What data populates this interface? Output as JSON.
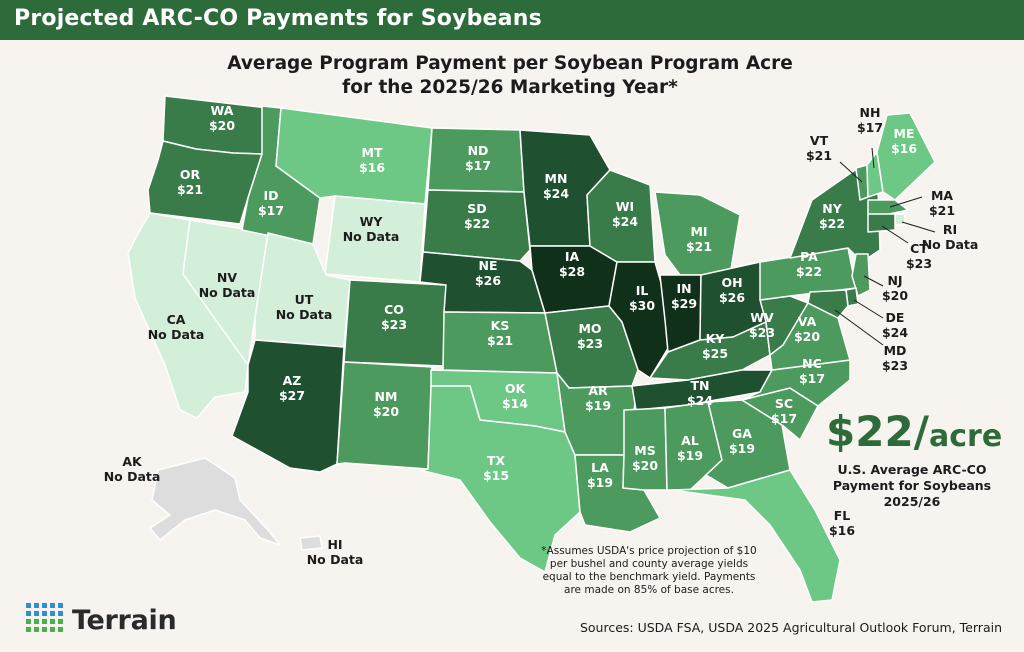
{
  "header": {
    "title": "Projected ARC-CO Payments for Soybeans"
  },
  "map_title": {
    "line1": "Average Program Payment per Soybean Program Acre",
    "line2": "for the 2025/26 Marketing Year*"
  },
  "legend_colors": {
    "no_data": "#d3eed9",
    "low": "#6cc884",
    "mid": "#4c9a5e",
    "high": "#3a7b4a",
    "top": "#1f5030",
    "max": "#10301a",
    "territory": "#dddddd"
  },
  "states": [
    {
      "abbr": "WA",
      "value": "$20"
    },
    {
      "abbr": "OR",
      "value": "$21"
    },
    {
      "abbr": "CA",
      "value": "No Data"
    },
    {
      "abbr": "NV",
      "value": "No Data"
    },
    {
      "abbr": "ID",
      "value": "$17"
    },
    {
      "abbr": "MT",
      "value": "$16"
    },
    {
      "abbr": "WY",
      "value": "No Data"
    },
    {
      "abbr": "UT",
      "value": "No Data"
    },
    {
      "abbr": "AZ",
      "value": "$27"
    },
    {
      "abbr": "CO",
      "value": "$23"
    },
    {
      "abbr": "NM",
      "value": "$20"
    },
    {
      "abbr": "ND",
      "value": "$17"
    },
    {
      "abbr": "SD",
      "value": "$22"
    },
    {
      "abbr": "NE",
      "value": "$26"
    },
    {
      "abbr": "KS",
      "value": "$21"
    },
    {
      "abbr": "OK",
      "value": "$14"
    },
    {
      "abbr": "TX",
      "value": "$15"
    },
    {
      "abbr": "MN",
      "value": "$24"
    },
    {
      "abbr": "IA",
      "value": "$28"
    },
    {
      "abbr": "MO",
      "value": "$23"
    },
    {
      "abbr": "AR",
      "value": "$19"
    },
    {
      "abbr": "LA",
      "value": "$19"
    },
    {
      "abbr": "WI",
      "value": "$24"
    },
    {
      "abbr": "IL",
      "value": "$30"
    },
    {
      "abbr": "MI",
      "value": "$21"
    },
    {
      "abbr": "IN",
      "value": "$29"
    },
    {
      "abbr": "OH",
      "value": "$26"
    },
    {
      "abbr": "KY",
      "value": "$25"
    },
    {
      "abbr": "TN",
      "value": "$24"
    },
    {
      "abbr": "MS",
      "value": "$20"
    },
    {
      "abbr": "AL",
      "value": "$19"
    },
    {
      "abbr": "GA",
      "value": "$19"
    },
    {
      "abbr": "FL",
      "value": "$16"
    },
    {
      "abbr": "SC",
      "value": "$17"
    },
    {
      "abbr": "NC",
      "value": "$17"
    },
    {
      "abbr": "VA",
      "value": "$20"
    },
    {
      "abbr": "WV",
      "value": "$23"
    },
    {
      "abbr": "PA",
      "value": "$22"
    },
    {
      "abbr": "NY",
      "value": "$22"
    },
    {
      "abbr": "VT",
      "value": "$21"
    },
    {
      "abbr": "NH",
      "value": "$17"
    },
    {
      "abbr": "ME",
      "value": "$16"
    },
    {
      "abbr": "MA",
      "value": "$21"
    },
    {
      "abbr": "RI",
      "value": "No Data"
    },
    {
      "abbr": "CT",
      "value": "$23"
    },
    {
      "abbr": "NJ",
      "value": "$20"
    },
    {
      "abbr": "DE",
      "value": "$24"
    },
    {
      "abbr": "MD",
      "value": "$23"
    },
    {
      "abbr": "AK",
      "value": "No Data"
    },
    {
      "abbr": "HI",
      "value": "No Data"
    }
  ],
  "us_average": {
    "amount": "$22/",
    "unit": "acre",
    "caption1": "U.S. Average ARC-CO",
    "caption2": "Payment for Soybeans",
    "caption3": "2025/26"
  },
  "footnote": {
    "line1": "*Assumes USDA's price projection of $10",
    "line2": "per bushel and county average yields",
    "line3": "equal to the benchmark yield. Payments",
    "line4": "are made on 85% of base acres."
  },
  "brand": {
    "name": "Terrain"
  },
  "sources": "Sources: USDA FSA, USDA 2025 Agricultural Outlook Forum, Terrain"
}
